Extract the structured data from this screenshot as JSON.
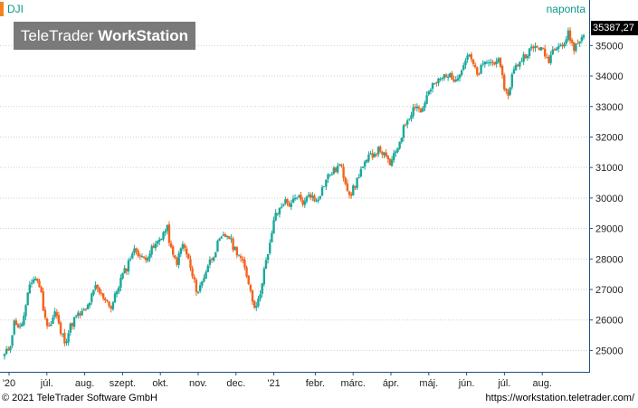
{
  "header": {
    "symbol": "DJI",
    "period": "naponta",
    "brand_regular": "TeleTrader ",
    "brand_bold": "WorkStation",
    "last_price": "35387,27"
  },
  "footer": {
    "copyright": "© 2021  TeleTrader Software GmbH",
    "url": "https://workstation.teletrader.com/"
  },
  "colors": {
    "up": "#1aa89a",
    "down": "#f2641e",
    "grid": "#d0d0d0",
    "axis": "#1f4e8c"
  },
  "chart_data": {
    "type": "candlestick",
    "title": "",
    "ylim": [
      24300,
      35900
    ],
    "y_ticks": [
      "25000",
      "26000",
      "27000",
      "28000",
      "29000",
      "30000",
      "31000",
      "32000",
      "33000",
      "34000",
      "35000"
    ],
    "x_ticks": [
      "'20",
      "júl.",
      "aug.",
      "szept.",
      "okt.",
      "nov.",
      "dec.",
      "'21",
      "febr.",
      "márc.",
      "ápr.",
      "máj.",
      "jún.",
      "júl.",
      "aug."
    ],
    "grid": true,
    "series": [
      {
        "type": "close_path",
        "values": [
          24850,
          25100,
          26000,
          25700,
          26200,
          27200,
          27400,
          27100,
          26000,
          25800,
          26300,
          25600,
          25300,
          25800,
          26100,
          26200,
          26300,
          26700,
          27100,
          26800,
          26700,
          26400,
          26900,
          27400,
          27700,
          28200,
          28300,
          28000,
          28100,
          28300,
          28500,
          28800,
          29000,
          28100,
          27900,
          28500,
          28100,
          27400,
          26900,
          27300,
          27800,
          28100,
          28500,
          28700,
          28800,
          28400,
          28200,
          27800,
          27300,
          26500,
          26600,
          27600,
          28200,
          29300,
          29600,
          29900,
          29800,
          29900,
          30000,
          29800,
          30200,
          29900,
          30100,
          30500,
          30800,
          30900,
          31100,
          30600,
          30100,
          30400,
          30900,
          31100,
          31400,
          31500,
          31600,
          31300,
          31100,
          31500,
          32000,
          32500,
          32800,
          33100,
          32800,
          33300,
          33600,
          33800,
          33900,
          34100,
          33900,
          34000,
          34200,
          34700,
          34500,
          34000,
          34300,
          34500,
          34400,
          34600,
          33900,
          33300,
          34100,
          34400,
          34600,
          34800,
          34900,
          35000,
          34800,
          34500,
          34900,
          35100,
          35000,
          35400,
          34900,
          35100,
          35387
        ]
      }
    ]
  }
}
